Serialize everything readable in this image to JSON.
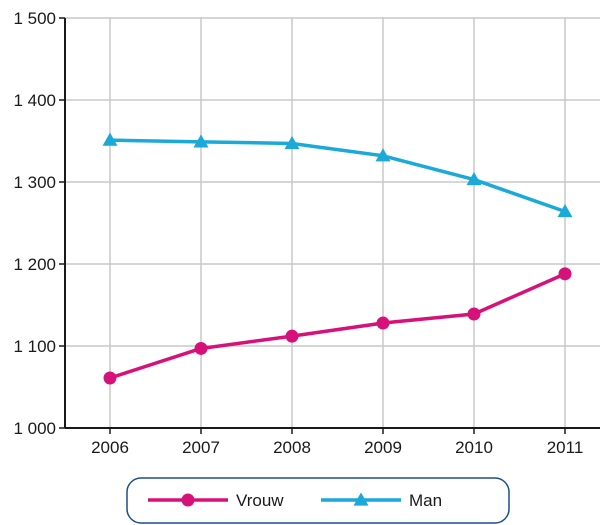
{
  "chart_data": {
    "type": "line",
    "x": [
      "2006",
      "2007",
      "2008",
      "2009",
      "2010",
      "2011"
    ],
    "series": [
      {
        "name": "Vrouw",
        "values": [
          1061,
          1097,
          1112,
          1128,
          1139,
          1188
        ],
        "color": "#d6127a",
        "marker": "circle"
      },
      {
        "name": "Man",
        "values": [
          1351,
          1349,
          1347,
          1332,
          1303,
          1264
        ],
        "color": "#1aa9d8",
        "marker": "triangle"
      }
    ],
    "ylim": [
      1000,
      1500
    ],
    "yticks": [
      1000,
      1100,
      1200,
      1300,
      1400,
      1500
    ],
    "ytick_labels": [
      "1 000",
      "1 100",
      "1 200",
      "1 300",
      "1 400",
      "1 500"
    ],
    "grid": true,
    "legend_position": "bottom",
    "title": "",
    "xlabel": "",
    "ylabel": ""
  }
}
